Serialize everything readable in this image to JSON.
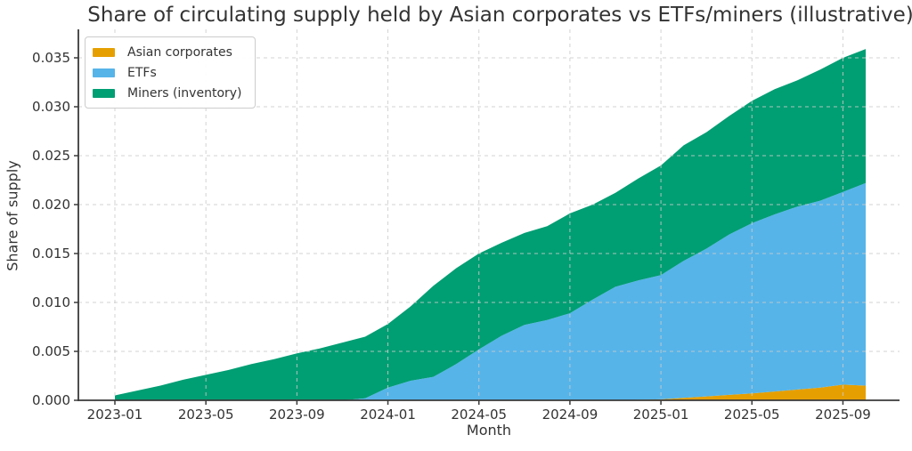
{
  "chart_data": {
    "type": "area",
    "stacked": true,
    "title": "Share of circulating supply held by Asian corporates vs ETFs/miners (illustrative)",
    "xlabel": "Month",
    "ylabel": "Share of supply",
    "x": [
      "2023-01",
      "2023-02",
      "2023-03",
      "2023-04",
      "2023-05",
      "2023-06",
      "2023-07",
      "2023-08",
      "2023-09",
      "2023-10",
      "2023-11",
      "2023-12",
      "2024-01",
      "2024-02",
      "2024-03",
      "2024-04",
      "2024-05",
      "2024-06",
      "2024-07",
      "2024-08",
      "2024-09",
      "2024-10",
      "2024-11",
      "2024-12",
      "2025-01",
      "2025-02",
      "2025-03",
      "2025-04",
      "2025-05",
      "2025-06",
      "2025-07",
      "2025-08",
      "2025-09",
      "2025-10"
    ],
    "series": [
      {
        "name": "Asian corporates",
        "color": "#E69F00",
        "values": [
          0,
          0,
          0,
          0,
          0,
          0,
          0,
          0,
          0,
          0,
          0,
          0,
          0,
          0,
          0,
          0,
          0,
          0,
          0,
          0,
          0,
          0,
          0,
          5e-05,
          0.0001,
          0.00025,
          0.0004,
          0.00055,
          0.0007,
          0.0009,
          0.0011,
          0.0013,
          0.0016,
          0.0015
        ]
      },
      {
        "name": "ETFs",
        "color": "#56B4E9",
        "values": [
          0,
          0,
          0,
          0,
          0,
          0,
          0,
          0,
          0,
          0,
          0,
          0.0002,
          0.0013,
          0.002,
          0.0024,
          0.0037,
          0.0052,
          0.0066,
          0.0077,
          0.0082,
          0.0089,
          0.0103,
          0.0116,
          0.0122,
          0.0127,
          0.014,
          0.0151,
          0.0164,
          0.0174,
          0.0181,
          0.0187,
          0.0191,
          0.0197,
          0.0207
        ]
      },
      {
        "name": "Miners (inventory)",
        "color": "#009E73",
        "values": [
          0.0005,
          0.001,
          0.0015,
          0.0021,
          0.0026,
          0.0031,
          0.0037,
          0.0042,
          0.0048,
          0.0053,
          0.0059,
          0.0063,
          0.0065,
          0.0076,
          0.0093,
          0.0098,
          0.0098,
          0.0095,
          0.0094,
          0.0096,
          0.0102,
          0.0097,
          0.0096,
          0.0104,
          0.0112,
          0.0118,
          0.0119,
          0.0121,
          0.0125,
          0.0128,
          0.0129,
          0.0134,
          0.0137,
          0.0137
        ]
      }
    ],
    "x_tick_labels": [
      "2023-01",
      "2023-05",
      "2023-09",
      "2024-01",
      "2024-05",
      "2024-09",
      "2025-01",
      "2025-05",
      "2025-09"
    ],
    "x_tick_indices": [
      0,
      4,
      8,
      12,
      16,
      20,
      24,
      28,
      32
    ],
    "y_ticks": [
      0,
      0.005,
      0.01,
      0.015,
      0.02,
      0.025,
      0.03,
      0.035
    ],
    "y_tick_labels": [
      "0.000",
      "0.005",
      "0.010",
      "0.015",
      "0.020",
      "0.025",
      "0.030",
      "0.035"
    ],
    "ylim": [
      0,
      0.0379
    ],
    "grid": "dashed",
    "legend_position": "upper-left",
    "colors": {
      "grid": "#cccccc",
      "spine": "#3a3a3a",
      "text": "#333333"
    }
  }
}
